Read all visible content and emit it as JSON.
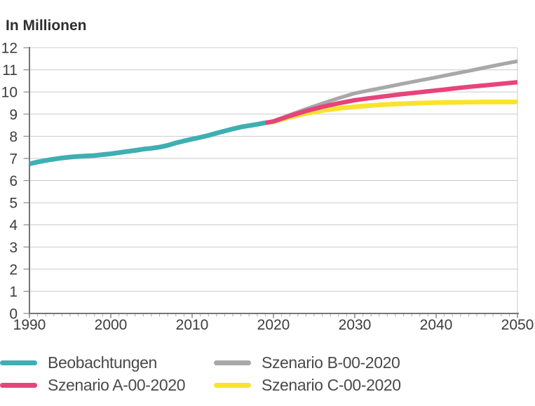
{
  "chart_data": {
    "type": "line",
    "title": "In Millionen",
    "x_axis": {
      "range": [
        1990,
        2050
      ],
      "major_ticks": [
        1990,
        2000,
        2010,
        2020,
        2030,
        2040,
        2050
      ],
      "minor_tick_interval": 1
    },
    "y_axis": {
      "range": [
        0,
        12
      ],
      "ticks": [
        0,
        1,
        2,
        3,
        4,
        5,
        6,
        7,
        8,
        9,
        10,
        11,
        12
      ]
    },
    "grid": "horizontal",
    "legend_position": "bottom",
    "series": [
      {
        "name": "Beobachtungen",
        "color": "#3EAFB2",
        "x": [
          1990,
          1991,
          1992,
          1993,
          1994,
          1995,
          1996,
          1997,
          1998,
          1999,
          2000,
          2001,
          2002,
          2003,
          2004,
          2005,
          2006,
          2007,
          2008,
          2009,
          2010,
          2011,
          2012,
          2013,
          2014,
          2015,
          2016,
          2017,
          2018,
          2019
        ],
        "y": [
          6.75,
          6.84,
          6.91,
          6.97,
          7.02,
          7.06,
          7.09,
          7.11,
          7.13,
          7.17,
          7.21,
          7.26,
          7.31,
          7.36,
          7.42,
          7.46,
          7.51,
          7.59,
          7.7,
          7.79,
          7.87,
          7.95,
          8.04,
          8.14,
          8.24,
          8.33,
          8.42,
          8.48,
          8.54,
          8.61
        ]
      },
      {
        "name": "Szenario A-00-2020",
        "color": "#E8437A",
        "x": [
          2019,
          2020,
          2022,
          2024,
          2026,
          2028,
          2030,
          2032,
          2034,
          2036,
          2038,
          2040,
          2042,
          2044,
          2046,
          2048,
          2050
        ],
        "y": [
          8.61,
          8.67,
          8.92,
          9.14,
          9.33,
          9.49,
          9.63,
          9.73,
          9.82,
          9.91,
          9.99,
          10.07,
          10.15,
          10.23,
          10.3,
          10.37,
          10.44
        ]
      },
      {
        "name": "Szenario B-00-2020",
        "color": "#A8A8A8",
        "x": [
          2019,
          2020,
          2022,
          2024,
          2026,
          2028,
          2030,
          2032,
          2034,
          2036,
          2038,
          2040,
          2042,
          2044,
          2046,
          2048,
          2050
        ],
        "y": [
          8.61,
          8.69,
          8.96,
          9.23,
          9.48,
          9.72,
          9.94,
          10.09,
          10.23,
          10.38,
          10.52,
          10.66,
          10.81,
          10.95,
          11.1,
          11.25,
          11.39
        ]
      },
      {
        "name": "Szenario C-00-2020",
        "color": "#F9E32E",
        "x": [
          2019,
          2020,
          2022,
          2024,
          2026,
          2028,
          2030,
          2032,
          2034,
          2036,
          2038,
          2040,
          2042,
          2044,
          2046,
          2048,
          2050
        ],
        "y": [
          8.61,
          8.66,
          8.86,
          9.03,
          9.16,
          9.26,
          9.33,
          9.39,
          9.44,
          9.47,
          9.5,
          9.52,
          9.53,
          9.54,
          9.55,
          9.55,
          9.55
        ]
      }
    ]
  }
}
